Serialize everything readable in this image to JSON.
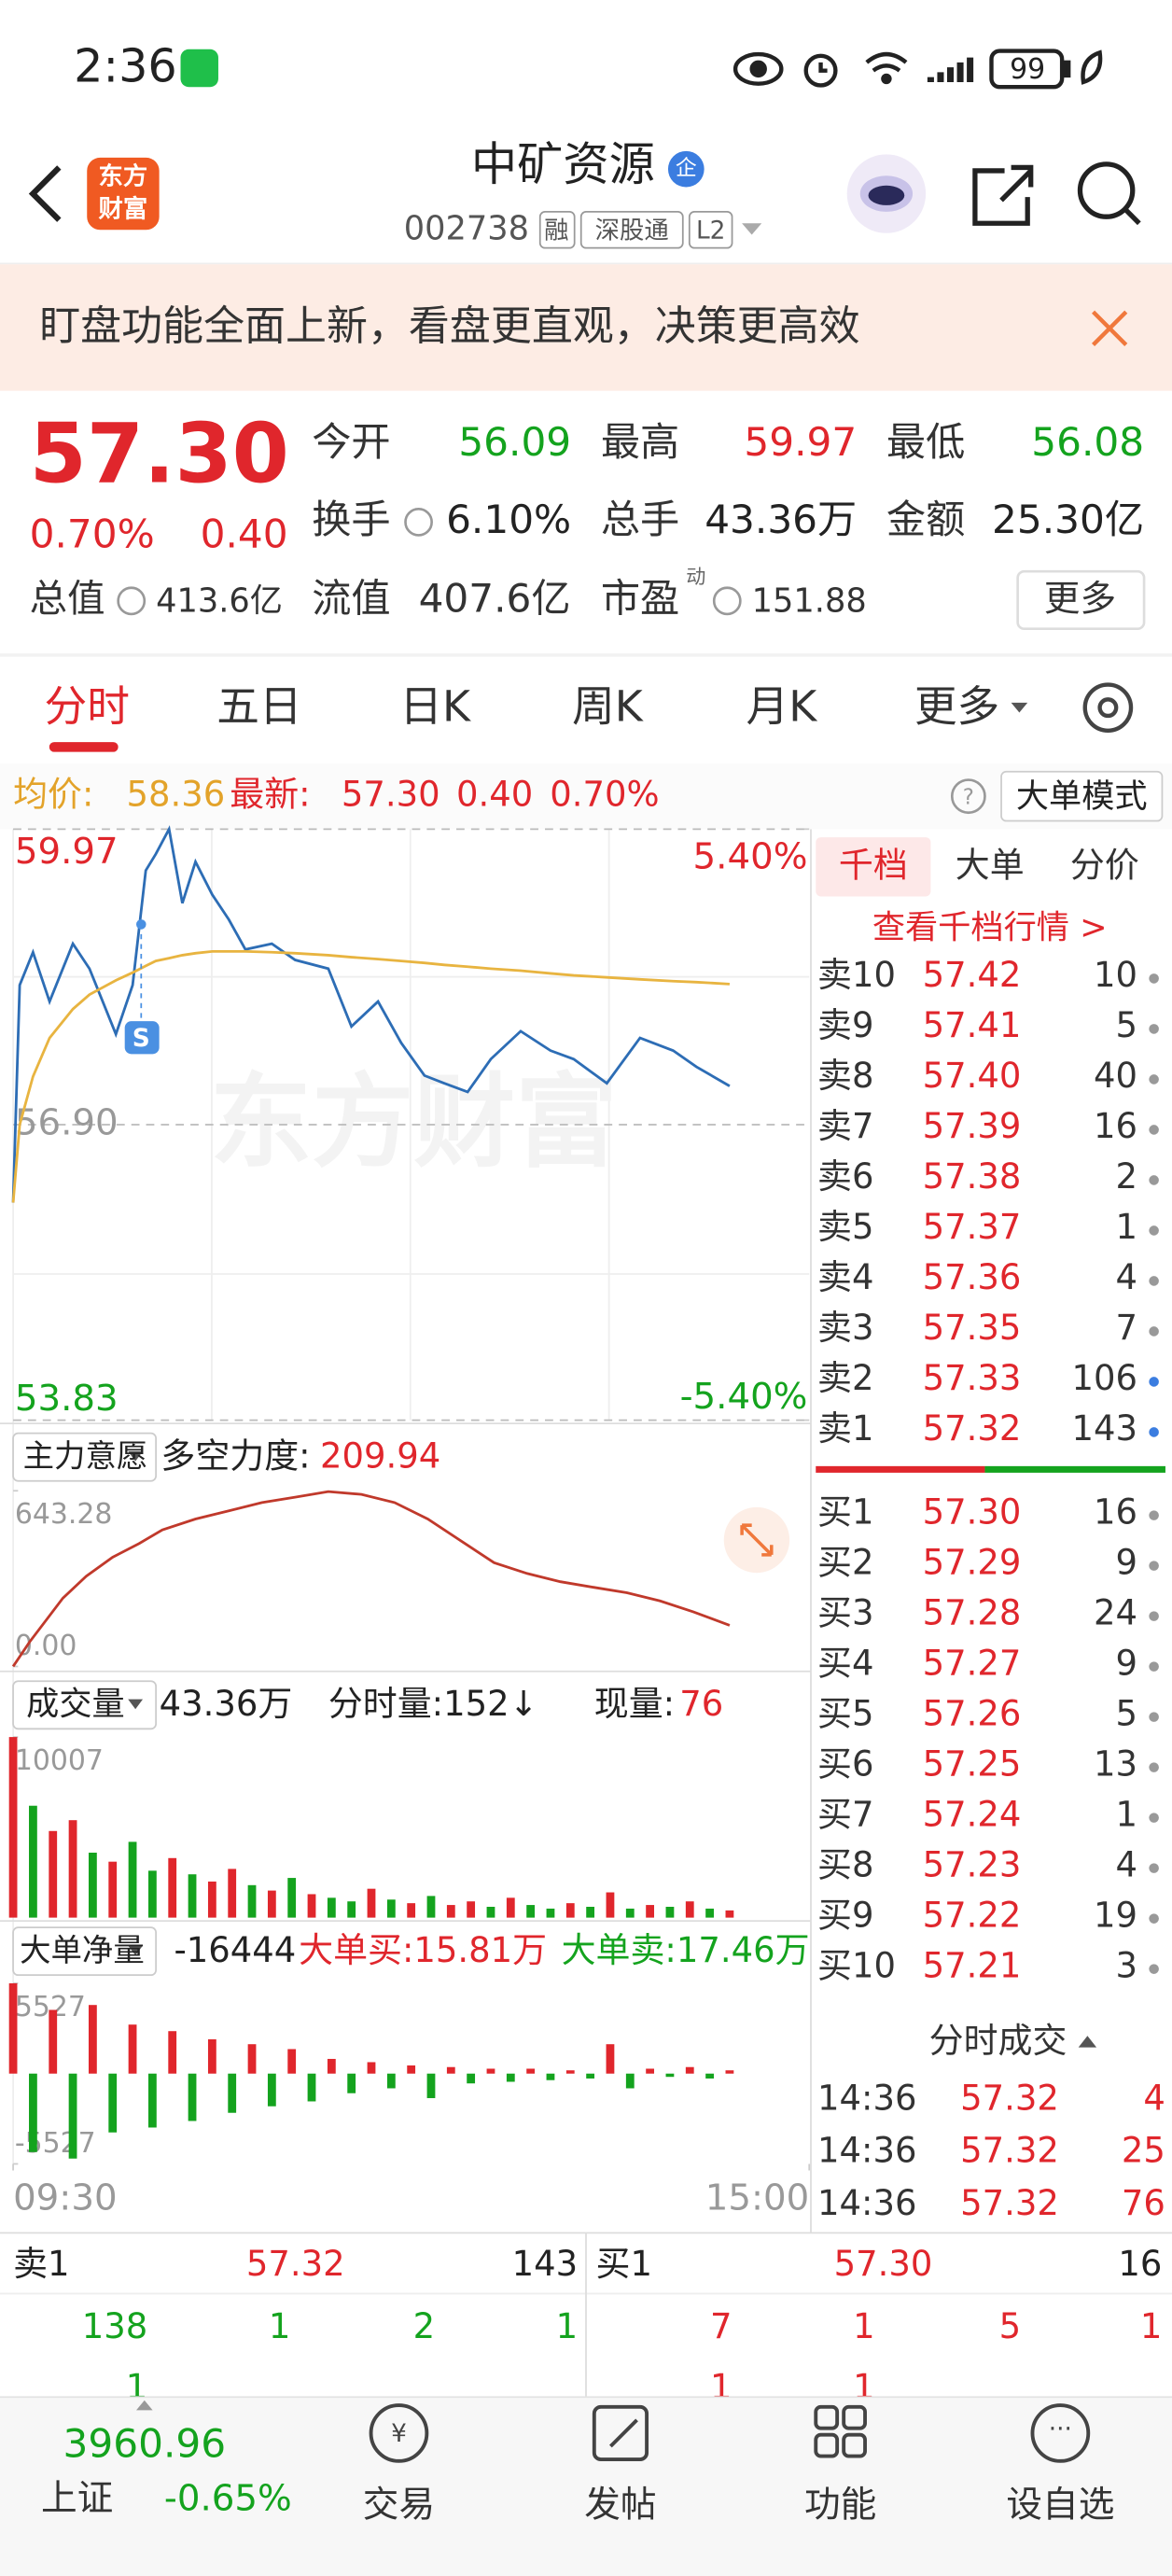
{
  "status_bar": {
    "time": "2:36",
    "battery": "99"
  },
  "header": {
    "logo": [
      "东方",
      "财富"
    ],
    "title": "中矿资源",
    "badge": "企",
    "code": "002738",
    "tags": [
      "融",
      "深股通",
      "L2"
    ]
  },
  "banner": {
    "text": "盯盘功能全面上新，看盘更直观，决策更高效"
  },
  "quote": {
    "price": "57.30",
    "change_pct": "0.70%",
    "change": "0.40",
    "stats": [
      {
        "label": "今开",
        "value": "56.09",
        "color": "#14a31e"
      },
      {
        "label": "最高",
        "value": "59.97",
        "color": "#e0262c"
      },
      {
        "label": "最低",
        "value": "56.08",
        "color": "#14a31e"
      },
      {
        "label": "换手",
        "value": "6.10%",
        "color": "#222222"
      },
      {
        "label": "总手",
        "value": "43.36万",
        "color": "#222222"
      },
      {
        "label": "金额",
        "value": "25.30亿",
        "color": "#222222"
      }
    ],
    "total_value": {
      "label": "总值",
      "value": "413.6亿"
    },
    "float_value": {
      "label": "流值",
      "value": "407.6亿"
    },
    "pe": {
      "label": "市盈",
      "sup": "动",
      "value": "151.88"
    },
    "more": "更多"
  },
  "tabs": [
    "分时",
    "五日",
    "日K",
    "周K",
    "月K",
    "更多"
  ],
  "info_bar": {
    "avg_label": "均价:",
    "avg": "58.36",
    "latest_label": "最新:",
    "latest": "57.30",
    "change": "0.40",
    "pct": "0.70%",
    "mode": "大单模式"
  },
  "chart_data": [
    {
      "type": "line",
      "watermark": "东方财富",
      "annotation": "S",
      "x": [
        0,
        2,
        6,
        11,
        18,
        23,
        31,
        36,
        40,
        43,
        47,
        51,
        55,
        60,
        65,
        70,
        78,
        85,
        95,
        102,
        110,
        117,
        124,
        130,
        137,
        144,
        153,
        162,
        169,
        179,
        189,
        199,
        206,
        216
      ],
      "xlim": [
        0,
        240
      ],
      "xticks": [
        {
          "value": 0,
          "label": "09:30"
        },
        {
          "value": 240,
          "label": "15:00"
        }
      ],
      "ylim": [
        53.83,
        59.97
      ],
      "yticks": [
        59.97,
        {
          "value": 56.9,
          "label": "56.90"
        },
        53.83
      ],
      "ytick_colors": [
        "#e0262c",
        "#999999",
        "#14a31e"
      ],
      "y2lim": [
        -5.4,
        5.4
      ],
      "y2ticks": [
        {
          "value": 5.4,
          "label": "5.40%"
        },
        {
          "value": -5.4,
          "label": "-5.40%"
        }
      ],
      "y2tick_colors": [
        "#e0262c",
        "#14a31e"
      ],
      "grid": true,
      "series": [
        {
          "color": "#2d6db5",
          "values": [
            56.09,
            58.35,
            58.69,
            58.18,
            58.78,
            58.52,
            57.84,
            58.35,
            59.54,
            59.71,
            59.97,
            59.2,
            59.63,
            59.29,
            59.03,
            58.72,
            58.78,
            58.61,
            58.52,
            57.92,
            58.18,
            57.75,
            57.41,
            57.33,
            57.24,
            57.58,
            57.87,
            57.67,
            57.58,
            57.33,
            57.8,
            57.67,
            57.5,
            57.3
          ]
        },
        {
          "color": "#e8b440",
          "values": [
            56.09,
            56.9,
            57.4,
            57.8,
            58.1,
            58.25,
            58.4,
            58.48,
            58.55,
            58.6,
            58.63,
            58.66,
            58.68,
            58.7,
            58.7,
            58.7,
            58.69,
            58.68,
            58.66,
            58.64,
            58.62,
            58.6,
            58.58,
            58.56,
            58.54,
            58.52,
            58.5,
            58.47,
            58.45,
            58.43,
            58.41,
            58.39,
            58.38,
            58.36
          ]
        }
      ]
    },
    {
      "type": "line",
      "title": "主力意愿",
      "label": "多空力度:",
      "value": "209.94",
      "x": [
        0,
        5,
        10,
        15,
        22,
        30,
        38,
        45,
        55,
        65,
        75,
        85,
        95,
        105,
        115,
        125,
        135,
        145,
        155,
        165,
        175,
        185,
        195,
        205,
        216
      ],
      "xlim": [
        0,
        240
      ],
      "ylim": [
        0,
        643.28
      ],
      "yticks": [
        643.28,
        {
          "value": 0,
          "label": "0.00"
        }
      ],
      "grid": false,
      "series": [
        {
          "color": "#c0392b",
          "values": [
            0,
            90,
            170,
            250,
            330,
            400,
            450,
            500,
            540,
            570,
            600,
            620,
            640,
            630,
            600,
            540,
            460,
            380,
            340,
            310,
            290,
            270,
            240,
            200,
            150
          ]
        }
      ]
    },
    {
      "type": "bar",
      "title": "成交量",
      "total": "43.36万",
      "period_volume": "分时量:152↓",
      "current_label": "现量:",
      "current": "76",
      "x": [
        0,
        6,
        12,
        18,
        24,
        30,
        36,
        42,
        48,
        54,
        60,
        66,
        72,
        78,
        84,
        90,
        96,
        102,
        108,
        114,
        120,
        126,
        132,
        138,
        144,
        150,
        156,
        162,
        168,
        174,
        180,
        186,
        192,
        198,
        204,
        210,
        216
      ],
      "xlim": [
        0,
        240
      ],
      "ylim": [
        0,
        10007
      ],
      "yticks": [
        10007
      ],
      "grid": false,
      "series": [
        {
          "values": [
            10007,
            6200,
            4800,
            5400,
            3600,
            3100,
            4200,
            2600,
            3300,
            2400,
            2000,
            2700,
            1800,
            1500,
            2200,
            1300,
            1100,
            900,
            1600,
            1000,
            800,
            1200,
            700,
            900,
            600,
            1100,
            700,
            500,
            800,
            600,
            1400,
            500,
            700,
            600,
            900,
            500,
            400
          ],
          "colors": [
            "#e0262c",
            "#14a31e",
            "#e0262c",
            "#e0262c",
            "#14a31e",
            "#e0262c",
            "#14a31e",
            "#14a31e",
            "#e0262c",
            "#14a31e",
            "#e0262c",
            "#e0262c",
            "#14a31e",
            "#e0262c",
            "#14a31e",
            "#e0262c",
            "#14a31e",
            "#14a31e",
            "#e0262c",
            "#14a31e",
            "#e0262c",
            "#14a31e",
            "#e0262c",
            "#e0262c",
            "#14a31e",
            "#e0262c",
            "#14a31e",
            "#14a31e",
            "#e0262c",
            "#14a31e",
            "#e0262c",
            "#14a31e",
            "#e0262c",
            "#14a31e",
            "#e0262c",
            "#14a31e",
            "#e0262c"
          ]
        }
      ]
    },
    {
      "type": "bar",
      "title": "大单净量",
      "net": "-16444",
      "buy": "大单买:15.81万",
      "sell": "大单卖:17.46万",
      "x": [
        0,
        6,
        12,
        18,
        24,
        30,
        36,
        42,
        48,
        54,
        60,
        66,
        72,
        78,
        84,
        90,
        96,
        102,
        108,
        114,
        120,
        126,
        132,
        138,
        144,
        150,
        156,
        162,
        168,
        174,
        180,
        186,
        192,
        198,
        204,
        210,
        216
      ],
      "xlim": [
        0,
        240
      ],
      "ylim": [
        -5527,
        5527
      ],
      "yticks": [
        5527,
        -5527
      ],
      "grid": false,
      "up_color": "#e0262c",
      "down_color": "#14a31e",
      "series": [
        {
          "values": [
            5527,
            -4800,
            3900,
            -5200,
            4200,
            -3600,
            3000,
            -3300,
            2600,
            -2900,
            2100,
            -2400,
            1800,
            -2000,
            1500,
            -1700,
            900,
            -1200,
            700,
            -900,
            500,
            -1500,
            400,
            -600,
            300,
            -500,
            300,
            -400,
            200,
            -300,
            1800,
            -900,
            300,
            -200,
            400,
            -300,
            200
          ]
        }
      ]
    }
  ],
  "order_book": {
    "tabs": [
      "千档",
      "大单",
      "分价"
    ],
    "link": "查看千档行情 >",
    "asks": [
      {
        "label": "卖10",
        "price": "57.42",
        "qty": "10",
        "dot": "#999999"
      },
      {
        "label": "卖9",
        "price": "57.41",
        "qty": "5",
        "dot": "#999999"
      },
      {
        "label": "卖8",
        "price": "57.40",
        "qty": "40",
        "dot": "#999999"
      },
      {
        "label": "卖7",
        "price": "57.39",
        "qty": "16",
        "dot": "#999999"
      },
      {
        "label": "卖6",
        "price": "57.38",
        "qty": "2",
        "dot": "#999999"
      },
      {
        "label": "卖5",
        "price": "57.37",
        "qty": "1",
        "dot": "#999999"
      },
      {
        "label": "卖4",
        "price": "57.36",
        "qty": "4",
        "dot": "#999999"
      },
      {
        "label": "卖3",
        "price": "57.35",
        "qty": "7",
        "dot": "#999999"
      },
      {
        "label": "卖2",
        "price": "57.33",
        "qty": "106",
        "dot": "#3b7de0"
      },
      {
        "label": "卖1",
        "price": "57.32",
        "qty": "143",
        "dot": "#3b7de0"
      }
    ],
    "bids": [
      {
        "label": "买1",
        "price": "57.30",
        "qty": "16",
        "dot": "#999999"
      },
      {
        "label": "买2",
        "price": "57.29",
        "qty": "9",
        "dot": "#999999"
      },
      {
        "label": "买3",
        "price": "57.28",
        "qty": "24",
        "dot": "#999999"
      },
      {
        "label": "买4",
        "price": "57.27",
        "qty": "9",
        "dot": "#999999"
      },
      {
        "label": "买5",
        "price": "57.26",
        "qty": "5",
        "dot": "#999999"
      },
      {
        "label": "买6",
        "price": "57.25",
        "qty": "13",
        "dot": "#999999"
      },
      {
        "label": "买7",
        "price": "57.24",
        "qty": "1",
        "dot": "#999999"
      },
      {
        "label": "买8",
        "price": "57.23",
        "qty": "4",
        "dot": "#999999"
      },
      {
        "label": "买9",
        "price": "57.22",
        "qty": "19",
        "dot": "#999999"
      },
      {
        "label": "买10",
        "price": "57.21",
        "qty": "3",
        "dot": "#999999"
      }
    ],
    "trades_title": "分时成交",
    "trades": [
      {
        "time": "14:36",
        "price": "57.32",
        "qty": "4"
      },
      {
        "time": "14:36",
        "price": "57.32",
        "qty": "25"
      },
      {
        "time": "14:36",
        "price": "57.32",
        "qty": "76"
      }
    ]
  },
  "bottom_table": {
    "sell": {
      "label": "卖1",
      "price": "57.32",
      "qty": "143",
      "rows": [
        [
          "138",
          "1",
          "2",
          "1"
        ],
        [
          "1"
        ]
      ]
    },
    "buy": {
      "label": "买1",
      "price": "57.30",
      "qty": "16",
      "rows": [
        [
          "7",
          "1",
          "5",
          "1"
        ],
        [
          "1",
          "1"
        ]
      ]
    }
  },
  "nav": {
    "index_value": "3960.96",
    "index_name": "上证",
    "index_change": "-0.65%",
    "items": [
      "交易",
      "发帖",
      "功能",
      "设自选"
    ]
  }
}
